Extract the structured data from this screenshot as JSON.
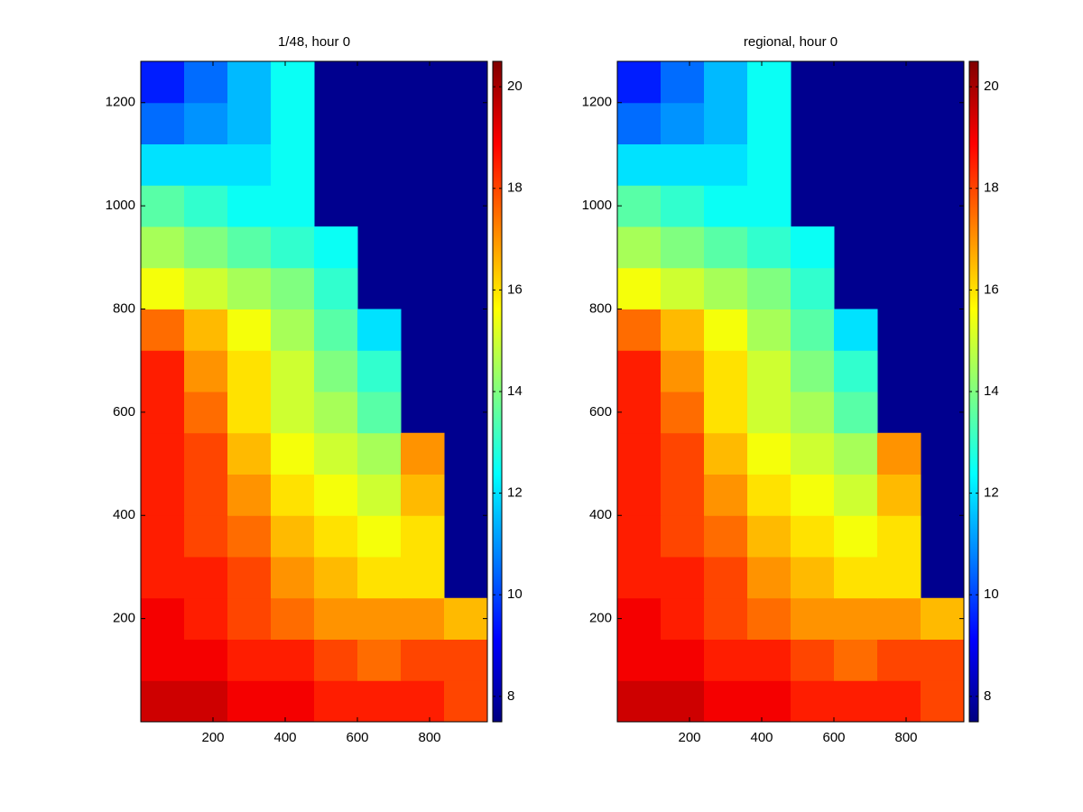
{
  "chart_data": [
    {
      "type": "heatmap",
      "title": "1/48, hour 0",
      "colormap": "jet",
      "nan_color": "#00008f",
      "x": [
        60,
        180,
        300,
        420,
        540,
        660,
        780,
        900
      ],
      "y": [
        40,
        120,
        200,
        280,
        360,
        440,
        520,
        600,
        680,
        760,
        840,
        920,
        1000,
        1080,
        1160,
        1240
      ],
      "z": [
        [
          19.5,
          19.5,
          19,
          19,
          18.5,
          18.5,
          18.5,
          18
        ],
        [
          19,
          19,
          18.5,
          18.5,
          18,
          17.5,
          18,
          18
        ],
        [
          19,
          18.5,
          18,
          17.5,
          17,
          17,
          17,
          16.5
        ],
        [
          18.5,
          18.5,
          18,
          17,
          16.5,
          16,
          16,
          null
        ],
        [
          18.5,
          18,
          17.5,
          16.5,
          16,
          15.5,
          16,
          null
        ],
        [
          18.5,
          18,
          17,
          16,
          15.5,
          15,
          16.5,
          null
        ],
        [
          18.5,
          18,
          16.5,
          15.5,
          15,
          14.5,
          17,
          null
        ],
        [
          18.5,
          17.5,
          16,
          15,
          14.5,
          13.5,
          null,
          null
        ],
        [
          18.5,
          17,
          16,
          15,
          14,
          13,
          null,
          null
        ],
        [
          17.5,
          16.5,
          15.5,
          14.5,
          13.5,
          12,
          null,
          null
        ],
        [
          15.5,
          15,
          14.5,
          14,
          13,
          null,
          null,
          null
        ],
        [
          14.5,
          14,
          13.5,
          13,
          12.5,
          null,
          null,
          null
        ],
        [
          13.5,
          13,
          12.5,
          12.5,
          null,
          null,
          null,
          null
        ],
        [
          12,
          12,
          12,
          12.5,
          null,
          null,
          null,
          null
        ],
        [
          10.5,
          11,
          11.5,
          12.5,
          null,
          null,
          null,
          null
        ],
        [
          9.5,
          10.5,
          11.5,
          12.5,
          null,
          null,
          null,
          null
        ]
      ],
      "xlim": [
        0,
        960
      ],
      "ylim": [
        0,
        1280
      ],
      "xticks": [
        200,
        400,
        600,
        800
      ],
      "yticks": [
        200,
        400,
        600,
        800,
        1000,
        1200
      ],
      "clim": [
        7.5,
        20.5
      ],
      "cticks": [
        8,
        10,
        12,
        14,
        16,
        18,
        20
      ]
    },
    {
      "type": "heatmap",
      "title": "regional, hour 0",
      "colormap": "jet",
      "nan_color": "#00008f",
      "x": [
        60,
        180,
        300,
        420,
        540,
        660,
        780,
        900
      ],
      "y": [
        40,
        120,
        200,
        280,
        360,
        440,
        520,
        600,
        680,
        760,
        840,
        920,
        1000,
        1080,
        1160,
        1240
      ],
      "z": [
        [
          19.5,
          19.5,
          19,
          19,
          18.5,
          18.5,
          18.5,
          18
        ],
        [
          19,
          19,
          18.5,
          18.5,
          18,
          17.5,
          18,
          18
        ],
        [
          19,
          18.5,
          18,
          17.5,
          17,
          17,
          17,
          16.5
        ],
        [
          18.5,
          18.5,
          18,
          17,
          16.5,
          16,
          16,
          null
        ],
        [
          18.5,
          18,
          17.5,
          16.5,
          16,
          15.5,
          16,
          null
        ],
        [
          18.5,
          18,
          17,
          16,
          15.5,
          15,
          16.5,
          null
        ],
        [
          18.5,
          18,
          16.5,
          15.5,
          15,
          14.5,
          17,
          null
        ],
        [
          18.5,
          17.5,
          16,
          15,
          14.5,
          13.5,
          null,
          null
        ],
        [
          18.5,
          17,
          16,
          15,
          14,
          13,
          null,
          null
        ],
        [
          17.5,
          16.5,
          15.5,
          14.5,
          13.5,
          12,
          null,
          null
        ],
        [
          15.5,
          15,
          14.5,
          14,
          13,
          null,
          null,
          null
        ],
        [
          14.5,
          14,
          13.5,
          13,
          12.5,
          null,
          null,
          null
        ],
        [
          13.5,
          13,
          12.5,
          12.5,
          null,
          null,
          null,
          null
        ],
        [
          12,
          12,
          12,
          12.5,
          null,
          null,
          null,
          null
        ],
        [
          10.5,
          11,
          11.5,
          12.5,
          null,
          null,
          null,
          null
        ],
        [
          9.5,
          10.5,
          11.5,
          12.5,
          null,
          null,
          null,
          null
        ]
      ],
      "xlim": [
        0,
        960
      ],
      "ylim": [
        0,
        1280
      ],
      "xticks": [
        200,
        400,
        600,
        800
      ],
      "yticks": [
        200,
        400,
        600,
        800,
        1000,
        1200
      ],
      "clim": [
        7.5,
        20.5
      ],
      "cticks": [
        8,
        10,
        12,
        14,
        16,
        18,
        20
      ]
    }
  ]
}
